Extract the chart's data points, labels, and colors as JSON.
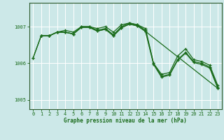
{
  "background_color": "#cce8e8",
  "grid_color": "#b8d8d8",
  "line_color": "#1a6b1a",
  "xlabel": "Graphe pression niveau de la mer (hPa)",
  "ylim": [
    1004.75,
    1007.65
  ],
  "xlim": [
    -0.5,
    23.5
  ],
  "yticks": [
    1005,
    1006,
    1007
  ],
  "xticks": [
    0,
    1,
    2,
    3,
    4,
    5,
    6,
    7,
    8,
    9,
    10,
    11,
    12,
    13,
    14,
    15,
    16,
    17,
    18,
    19,
    20,
    21,
    22,
    23
  ],
  "line1": {
    "x": [
      0,
      1,
      2,
      3,
      4,
      5,
      6,
      7,
      8,
      9,
      10,
      11,
      12,
      13,
      14,
      15,
      16,
      17,
      18,
      19,
      20,
      21,
      22,
      23
    ],
    "y": [
      1006.15,
      1006.75,
      1006.75,
      1006.85,
      1006.9,
      1006.85,
      1007.0,
      1007.0,
      1006.95,
      1007.0,
      1006.85,
      1007.05,
      1007.1,
      1007.05,
      1006.95,
      1006.0,
      1005.7,
      1005.75,
      1006.2,
      1006.4,
      1006.1,
      1006.05,
      1005.95,
      1005.4
    ]
  },
  "line2": {
    "x": [
      0,
      1,
      2,
      3,
      4,
      5,
      6,
      7,
      8,
      9,
      10,
      11,
      12,
      13,
      14,
      15,
      16,
      17,
      18,
      19,
      20,
      21,
      22,
      23
    ],
    "y": [
      1006.15,
      1006.75,
      1006.75,
      1006.85,
      1006.85,
      1006.8,
      1007.0,
      1007.0,
      1006.9,
      1006.95,
      1006.78,
      1007.0,
      1007.1,
      1007.05,
      1006.9,
      1006.0,
      1005.65,
      1005.7,
      1006.1,
      1006.3,
      1006.05,
      1006.0,
      1005.9,
      1005.35
    ]
  },
  "line3": {
    "x": [
      1,
      2,
      3,
      4,
      5,
      6,
      7,
      8,
      9,
      10,
      11,
      12,
      13,
      14,
      15,
      16,
      17,
      18,
      19,
      20,
      21,
      22,
      23
    ],
    "y": [
      1006.75,
      1006.75,
      1006.85,
      1006.85,
      1006.8,
      1006.98,
      1006.98,
      1006.88,
      1006.93,
      1006.75,
      1006.97,
      1007.07,
      1007.02,
      1006.87,
      1005.97,
      1005.62,
      1005.68,
      1006.08,
      1006.28,
      1006.02,
      1005.97,
      1005.87,
      1005.32
    ]
  },
  "line4": {
    "x": [
      1,
      2,
      3,
      4,
      5,
      6,
      7,
      8,
      9,
      10,
      11,
      12,
      13,
      14,
      23
    ],
    "y": [
      1006.75,
      1006.75,
      1006.85,
      1006.85,
      1006.8,
      1006.98,
      1006.98,
      1006.88,
      1006.93,
      1006.75,
      1006.97,
      1007.07,
      1007.02,
      1006.87,
      1005.32
    ]
  }
}
